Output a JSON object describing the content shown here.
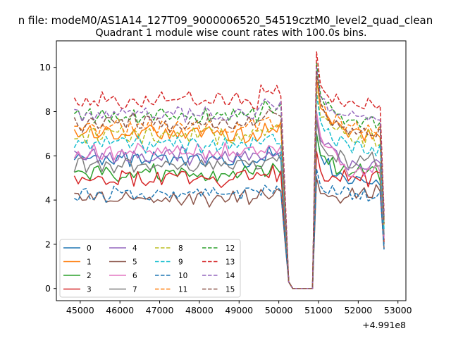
{
  "chart_data": {
    "type": "line",
    "suptitle": "n file: modeM0/AS1A14_127T09_9000006520_54519cztM0_level2_quad_clean",
    "title": "Quadrant 1 module wise count rates with 100.0s bins.",
    "xlabel": "",
    "ylabel": "",
    "x_offset_label": "+4.991e8",
    "xlim": [
      44400,
      53200
    ],
    "ylim": [
      -0.55,
      11.2
    ],
    "xticks": [
      45000,
      46000,
      47000,
      48000,
      49000,
      50000,
      51000,
      52000,
      53000
    ],
    "yticks": [
      0,
      2,
      4,
      6,
      8,
      10
    ],
    "x_start": 44850,
    "x_step": 100,
    "n_points": 79,
    "grid": false,
    "legend_placement": "lower-left",
    "legend_columns": 4,
    "series": [
      {
        "name": "0",
        "color": "#1f77b4",
        "dash": "solid",
        "level": 5.8,
        "end": 4.8,
        "peak": 7.0
      },
      {
        "name": "1",
        "color": "#ff7f0e",
        "dash": "solid",
        "level": 7.0,
        "end": 7.0,
        "peak": 9.5
      },
      {
        "name": "2",
        "color": "#2ca02c",
        "dash": "solid",
        "level": 5.2,
        "end": 5.2,
        "peak": 7.0
      },
      {
        "name": "3",
        "color": "#d62728",
        "dash": "solid",
        "level": 5.0,
        "end": 5.0,
        "peak": 6.2
      },
      {
        "name": "4",
        "color": "#9467bd",
        "dash": "solid",
        "level": 6.0,
        "end": 5.6,
        "peak": 7.8
      },
      {
        "name": "5",
        "color": "#8c564b",
        "dash": "solid",
        "level": 4.1,
        "end": 4.3,
        "peak": 5.0
      },
      {
        "name": "6",
        "color": "#e377c2",
        "dash": "solid",
        "level": 6.2,
        "end": 5.4,
        "peak": 8.0
      },
      {
        "name": "7",
        "color": "#7f7f7f",
        "dash": "solid",
        "level": 5.6,
        "end": 5.8,
        "peak": 7.6
      },
      {
        "name": "8",
        "color": "#bcbd22",
        "dash": "dashed",
        "level": 6.9,
        "end": 6.8,
        "peak": 9.0
      },
      {
        "name": "9",
        "color": "#17becf",
        "dash": "dashed",
        "level": 6.5,
        "end": 6.3,
        "peak": 8.8
      },
      {
        "name": "10",
        "color": "#1f77b4",
        "dash": "dashed",
        "level": 4.3,
        "end": 4.2,
        "peak": 5.4
      },
      {
        "name": "11",
        "color": "#ff7f0e",
        "dash": "dashed",
        "level": 7.3,
        "end": 7.3,
        "peak": 9.6
      },
      {
        "name": "12",
        "color": "#2ca02c",
        "dash": "dashed",
        "level": 7.8,
        "end": 7.5,
        "peak": 10.2
      },
      {
        "name": "13",
        "color": "#d62728",
        "dash": "dashed",
        "level": 8.5,
        "end": 8.3,
        "peak": 10.7
      },
      {
        "name": "14",
        "color": "#9467bd",
        "dash": "dashed",
        "level": 7.9,
        "end": 7.8,
        "peak": 10.0
      },
      {
        "name": "15",
        "color": "#8c564b",
        "dash": "dashed",
        "level": 7.5,
        "end": 7.0,
        "peak": 9.8
      }
    ]
  }
}
